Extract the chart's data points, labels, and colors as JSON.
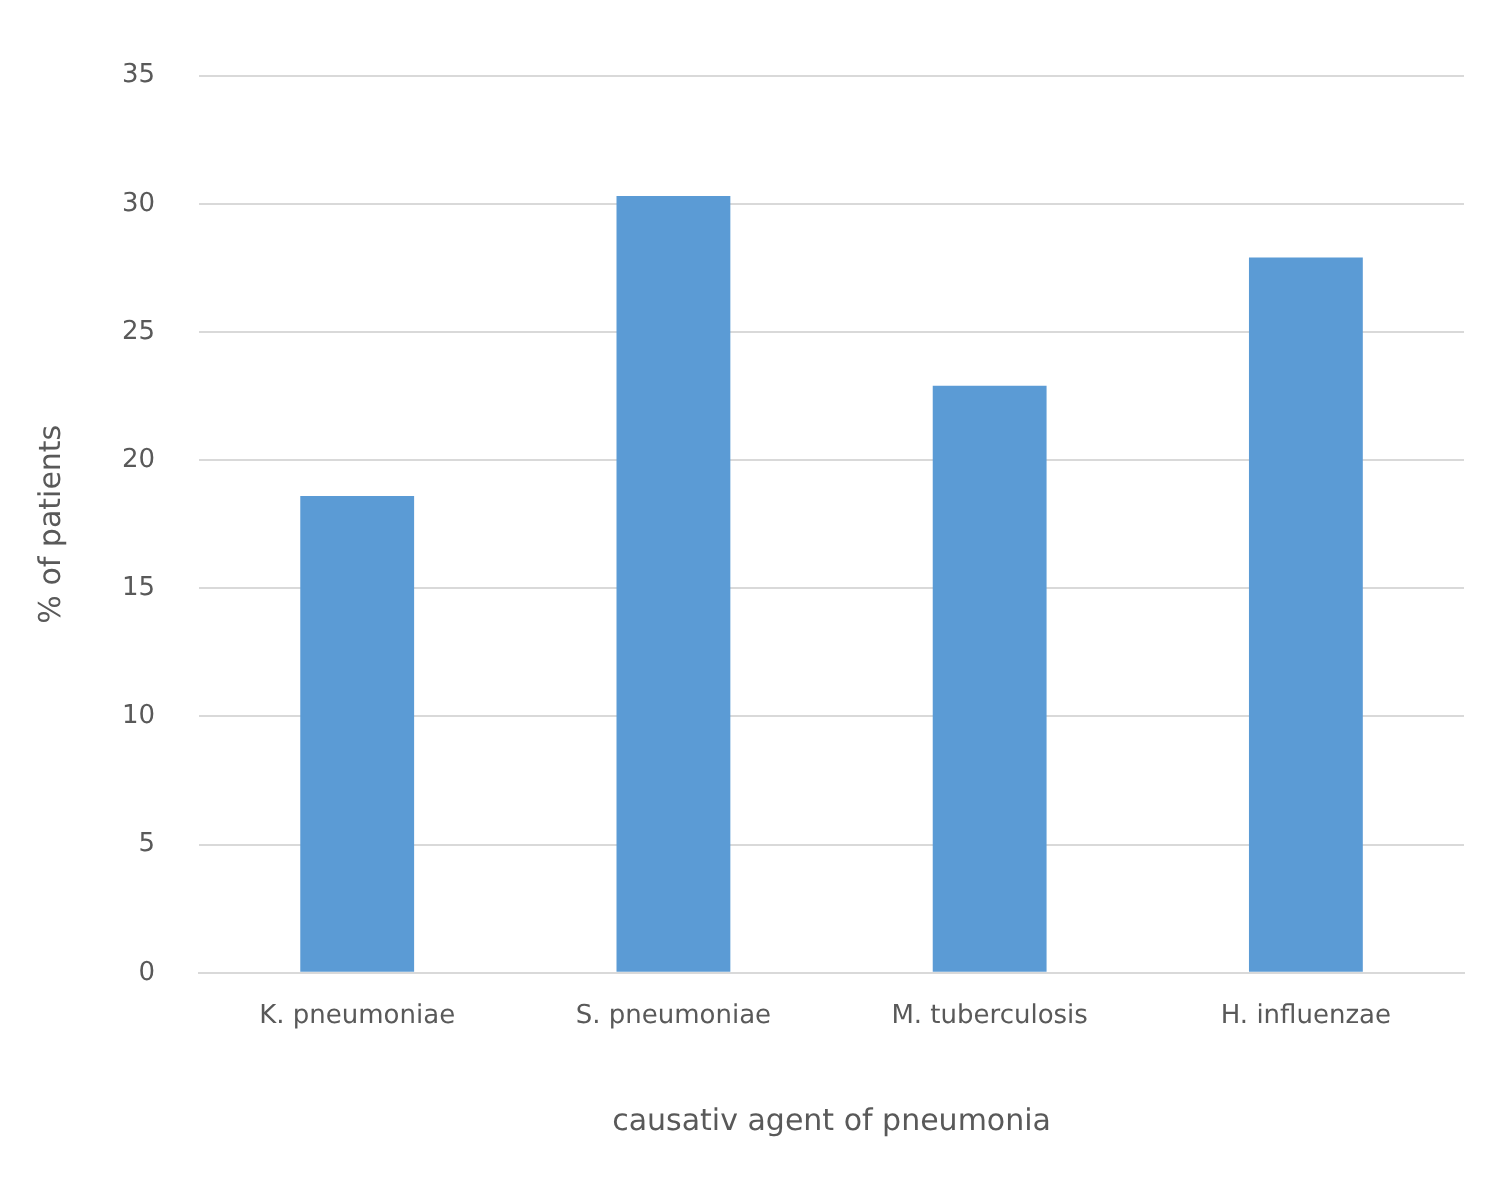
{
  "chart_data": {
    "type": "bar",
    "xlabel": "causativ agent of pneumonia",
    "ylabel": "% of patients",
    "categories": [
      "K. pneumoniae",
      "S. pneumoniae",
      "M. tuberculosis",
      "H. influenzae"
    ],
    "values": [
      18.6,
      30.3,
      22.9,
      27.9
    ],
    "color": "#5b9bd5",
    "ylim": [
      0,
      35
    ],
    "yticks": [
      0,
      5,
      10,
      15,
      20,
      25,
      30,
      35
    ],
    "grid": "y",
    "legend": false
  }
}
